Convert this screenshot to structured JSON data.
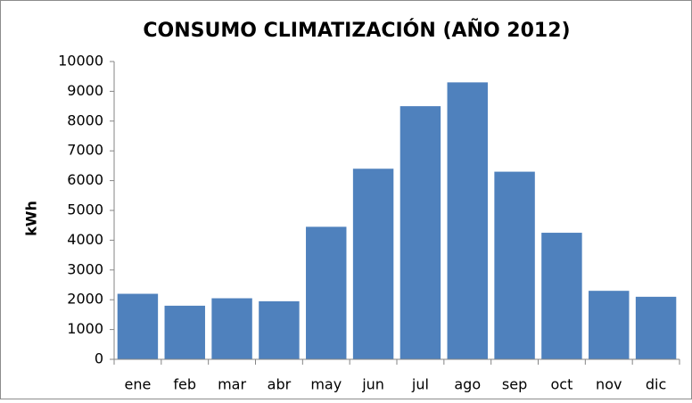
{
  "chart_data": {
    "type": "bar",
    "title": "CONSUMO CLIMATIZACIÓN (AÑO 2012)",
    "y_label": "kWh",
    "categories": [
      "ene",
      "feb",
      "mar",
      "abr",
      "may",
      "jun",
      "jul",
      "ago",
      "sep",
      "oct",
      "nov",
      "dic"
    ],
    "values": [
      2200,
      1800,
      2050,
      1950,
      4450,
      6400,
      8500,
      9300,
      6300,
      4250,
      2300,
      2100
    ],
    "color": "#4f81bd",
    "ylim": [
      0,
      10000
    ],
    "yticks": [
      0,
      1000,
      2000,
      3000,
      4000,
      5000,
      6000,
      7000,
      8000,
      9000,
      10000
    ],
    "grid": false
  }
}
